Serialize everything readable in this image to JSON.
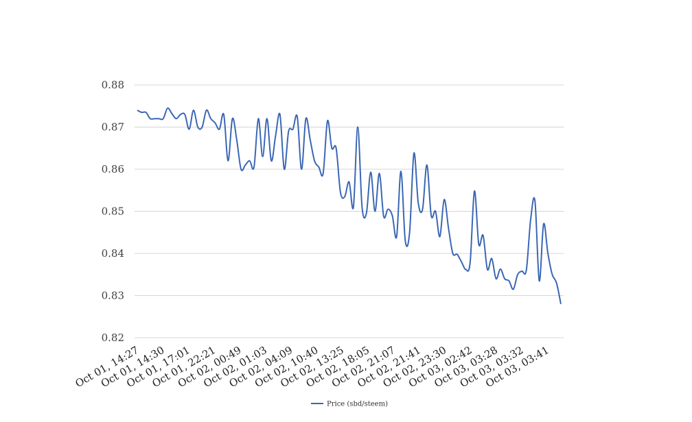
{
  "chart_data": {
    "type": "line",
    "title": "",
    "xlabel": "",
    "ylabel": "",
    "ylim": [
      0.82,
      0.88
    ],
    "yticks": [
      0.82,
      0.83,
      0.84,
      0.85,
      0.86,
      0.87,
      0.88
    ],
    "ytick_labels": [
      "0.82",
      "0.83",
      "0.84",
      "0.85",
      "0.86",
      "0.87",
      "0.88"
    ],
    "x_tick_labels": [
      "Oct 01, 14:27",
      "Oct 01, 14:30",
      "Oct 01, 17:01",
      "Oct 01, 22:21",
      "Oct 02, 00:49",
      "Oct 02, 01:03",
      "Oct 02, 04:09",
      "Oct 02, 10:40",
      "Oct 02, 13:25",
      "Oct 02, 18:05",
      "Oct 02, 21:07",
      "Oct 02, 21:41",
      "Oct 02, 23:30",
      "Oct 03, 02:42",
      "Oct 03, 03:28",
      "Oct 03, 03:32",
      "Oct 03, 03:41"
    ],
    "grid": true,
    "legend_position": "bottom",
    "series": [
      {
        "name": "Price (sbd/steem)",
        "color": "#3a66b4",
        "values": [
          0.874,
          0.8735,
          0.8735,
          0.872,
          0.872,
          0.872,
          0.872,
          0.8745,
          0.8732,
          0.872,
          0.873,
          0.873,
          0.8695,
          0.874,
          0.87,
          0.87,
          0.874,
          0.872,
          0.871,
          0.8695,
          0.873,
          0.862,
          0.872,
          0.867,
          0.86,
          0.861,
          0.862,
          0.8605,
          0.872,
          0.863,
          0.872,
          0.862,
          0.868,
          0.873,
          0.86,
          0.869,
          0.8695,
          0.8725,
          0.86,
          0.872,
          0.867,
          0.862,
          0.8605,
          0.859,
          0.8715,
          0.865,
          0.865,
          0.8545,
          0.8535,
          0.857,
          0.851,
          0.87,
          0.851,
          0.8495,
          0.8593,
          0.85,
          0.859,
          0.8488,
          0.8505,
          0.849,
          0.844,
          0.8595,
          0.843,
          0.845,
          0.8638,
          0.852,
          0.8505,
          0.861,
          0.849,
          0.85,
          0.844,
          0.8528,
          0.846,
          0.84,
          0.8398,
          0.838,
          0.8362,
          0.8378,
          0.8548,
          0.8422,
          0.8443,
          0.8362,
          0.8388,
          0.834,
          0.8363,
          0.834,
          0.8335,
          0.8315,
          0.835,
          0.8358,
          0.836,
          0.848,
          0.8525,
          0.8335,
          0.847,
          0.84,
          0.835,
          0.833,
          0.828
        ]
      }
    ]
  }
}
